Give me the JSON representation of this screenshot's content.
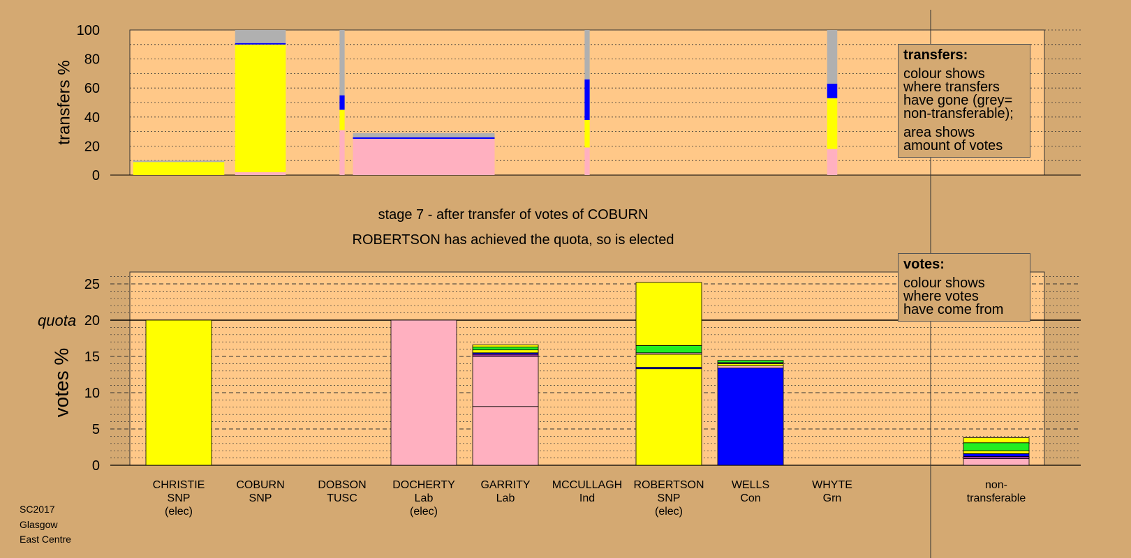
{
  "footer": {
    "lines": [
      "SC2017",
      "Glasgow",
      "East Centre"
    ]
  },
  "stage_title": "stage 7 - after transfer of votes of COBURN",
  "elected_note": "ROBERTSON has achieved the quota, so is elected",
  "transfers_box": {
    "title": "transfers:",
    "lines1": [
      "colour shows",
      "where transfers",
      "have gone (grey=",
      "non-transferable);"
    ],
    "lines2": [
      "area shows",
      "amount of votes"
    ]
  },
  "votes_box": {
    "title": "votes:",
    "lines": [
      "colour shows",
      "where votes",
      "have come from"
    ]
  },
  "colors": {
    "SNP": "#ffff00",
    "Lab": "#ffb0c0",
    "Con": "#0000ff",
    "Grn": "#22ee22",
    "Ind": "#993399",
    "TUSC": "#dd2222",
    "nontransferable": "#b0b0b0",
    "plot_bg": "#ffc888",
    "page_bg": "#d4a972"
  },
  "chart_data": [
    {
      "type": "bar",
      "panel": "transfers",
      "ylabel": "transfers %",
      "ylim": [
        0,
        100
      ],
      "yticks": [
        0,
        20,
        40,
        60,
        80,
        100
      ],
      "columns": [
        {
          "candidate": "CHRISTIE",
          "share": 18,
          "segments": [
            {
              "party": "SNP",
              "from": 0,
              "to": 9
            },
            {
              "party": "nontransferable",
              "from": 9,
              "to": 10
            }
          ]
        },
        {
          "candidate": "COBURN",
          "share": 10,
          "segments": [
            {
              "party": "Lab",
              "from": 0,
              "to": 2
            },
            {
              "party": "SNP",
              "from": 2,
              "to": 90
            },
            {
              "party": "Con",
              "from": 90,
              "to": 91
            },
            {
              "party": "nontransferable",
              "from": 91,
              "to": 100
            }
          ]
        },
        {
          "candidate": "DOBSON",
          "share": 1,
          "segments": [
            {
              "party": "Lab",
              "from": 0,
              "to": 31
            },
            {
              "party": "SNP",
              "from": 31,
              "to": 45
            },
            {
              "party": "Con",
              "from": 45,
              "to": 55
            },
            {
              "party": "nontransferable",
              "from": 55,
              "to": 100
            }
          ]
        },
        {
          "candidate": "DOCHERTY",
          "share": 28,
          "segments": [
            {
              "party": "Lab",
              "from": 0,
              "to": 25
            },
            {
              "party": "Con",
              "from": 25,
              "to": 26
            },
            {
              "party": "nontransferable",
              "from": 26,
              "to": 29
            }
          ]
        },
        {
          "candidate": "MCCULLAGH",
          "share": 1,
          "segments": [
            {
              "party": "Lab",
              "from": 0,
              "to": 19
            },
            {
              "party": "SNP",
              "from": 19,
              "to": 38
            },
            {
              "party": "Con",
              "from": 38,
              "to": 66
            },
            {
              "party": "nontransferable",
              "from": 66,
              "to": 100
            }
          ]
        },
        {
          "candidate": "WHYTE",
          "share": 2,
          "segments": [
            {
              "party": "Lab",
              "from": 0,
              "to": 18
            },
            {
              "party": "SNP",
              "from": 18,
              "to": 53
            },
            {
              "party": "Con",
              "from": 53,
              "to": 63
            },
            {
              "party": "nontransferable",
              "from": 63,
              "to": 100
            }
          ]
        }
      ]
    },
    {
      "type": "bar",
      "panel": "votes",
      "ylabel": "votes %",
      "ylim": [
        0,
        26
      ],
      "yticks": [
        0,
        5,
        10,
        15,
        20,
        25
      ],
      "quota": 20,
      "quota_label": "quota",
      "categories": [
        {
          "name": "CHRISTIE",
          "party": "SNP",
          "note": "(elec)"
        },
        {
          "name": "COBURN",
          "party": "SNP",
          "note": ""
        },
        {
          "name": "DOBSON",
          "party": "TUSC",
          "note": ""
        },
        {
          "name": "DOCHERTY",
          "party": "Lab",
          "note": "(elec)"
        },
        {
          "name": "GARRITY",
          "party": "Lab",
          "note": ""
        },
        {
          "name": "MCCULLAGH",
          "party": "Ind",
          "note": ""
        },
        {
          "name": "ROBERTSON",
          "party": "SNP",
          "note": "(elec)"
        },
        {
          "name": "WELLS",
          "party": "Con",
          "note": ""
        },
        {
          "name": "WHYTE",
          "party": "Grn",
          "note": ""
        }
      ],
      "nontransferable_label": [
        "non-",
        "transferable"
      ],
      "stacks": [
        {
          "candidate": "CHRISTIE",
          "segments": [
            {
              "party": "SNP",
              "value": 20
            }
          ]
        },
        {
          "candidate": "COBURN",
          "segments": []
        },
        {
          "candidate": "DOBSON",
          "segments": []
        },
        {
          "candidate": "DOCHERTY",
          "segments": [
            {
              "party": "Lab",
              "value": 20
            }
          ]
        },
        {
          "candidate": "GARRITY",
          "segments": [
            {
              "party": "Lab",
              "value": 8.1
            },
            {
              "party": "Lab",
              "value": 6.9
            },
            {
              "party": "Ind",
              "value": 0.3
            },
            {
              "party": "Con",
              "value": 0.2
            },
            {
              "party": "SNP",
              "value": 0.4
            },
            {
              "party": "Grn",
              "value": 0.4
            },
            {
              "party": "SNP",
              "value": 0.3
            }
          ]
        },
        {
          "candidate": "MCCULLAGH",
          "segments": []
        },
        {
          "candidate": "ROBERTSON",
          "segments": [
            {
              "party": "SNP",
              "value": 13.3
            },
            {
              "party": "Con",
              "value": 0.2
            },
            {
              "party": "SNP",
              "value": 1.8
            },
            {
              "party": "Lab",
              "value": 0.2
            },
            {
              "party": "Grn",
              "value": 1.0
            },
            {
              "party": "SNP",
              "value": 8.7
            }
          ]
        },
        {
          "candidate": "WELLS",
          "segments": [
            {
              "party": "Con",
              "value": 13.4
            },
            {
              "party": "Lab",
              "value": 0.3
            },
            {
              "party": "SNP",
              "value": 0.3
            },
            {
              "party": "Ind",
              "value": 0.15
            },
            {
              "party": "Grn",
              "value": 0.3
            }
          ]
        },
        {
          "candidate": "WHYTE",
          "segments": []
        },
        {
          "candidate": "non-transferable",
          "segments": [
            {
              "party": "Lab",
              "value": 0.9
            },
            {
              "party": "Ind",
              "value": 0.3
            },
            {
              "party": "Con",
              "value": 0.4
            },
            {
              "party": "SNP",
              "value": 0.4
            },
            {
              "party": "Grn",
              "value": 1.1
            },
            {
              "party": "SNP",
              "value": 0.7
            }
          ]
        }
      ]
    }
  ]
}
